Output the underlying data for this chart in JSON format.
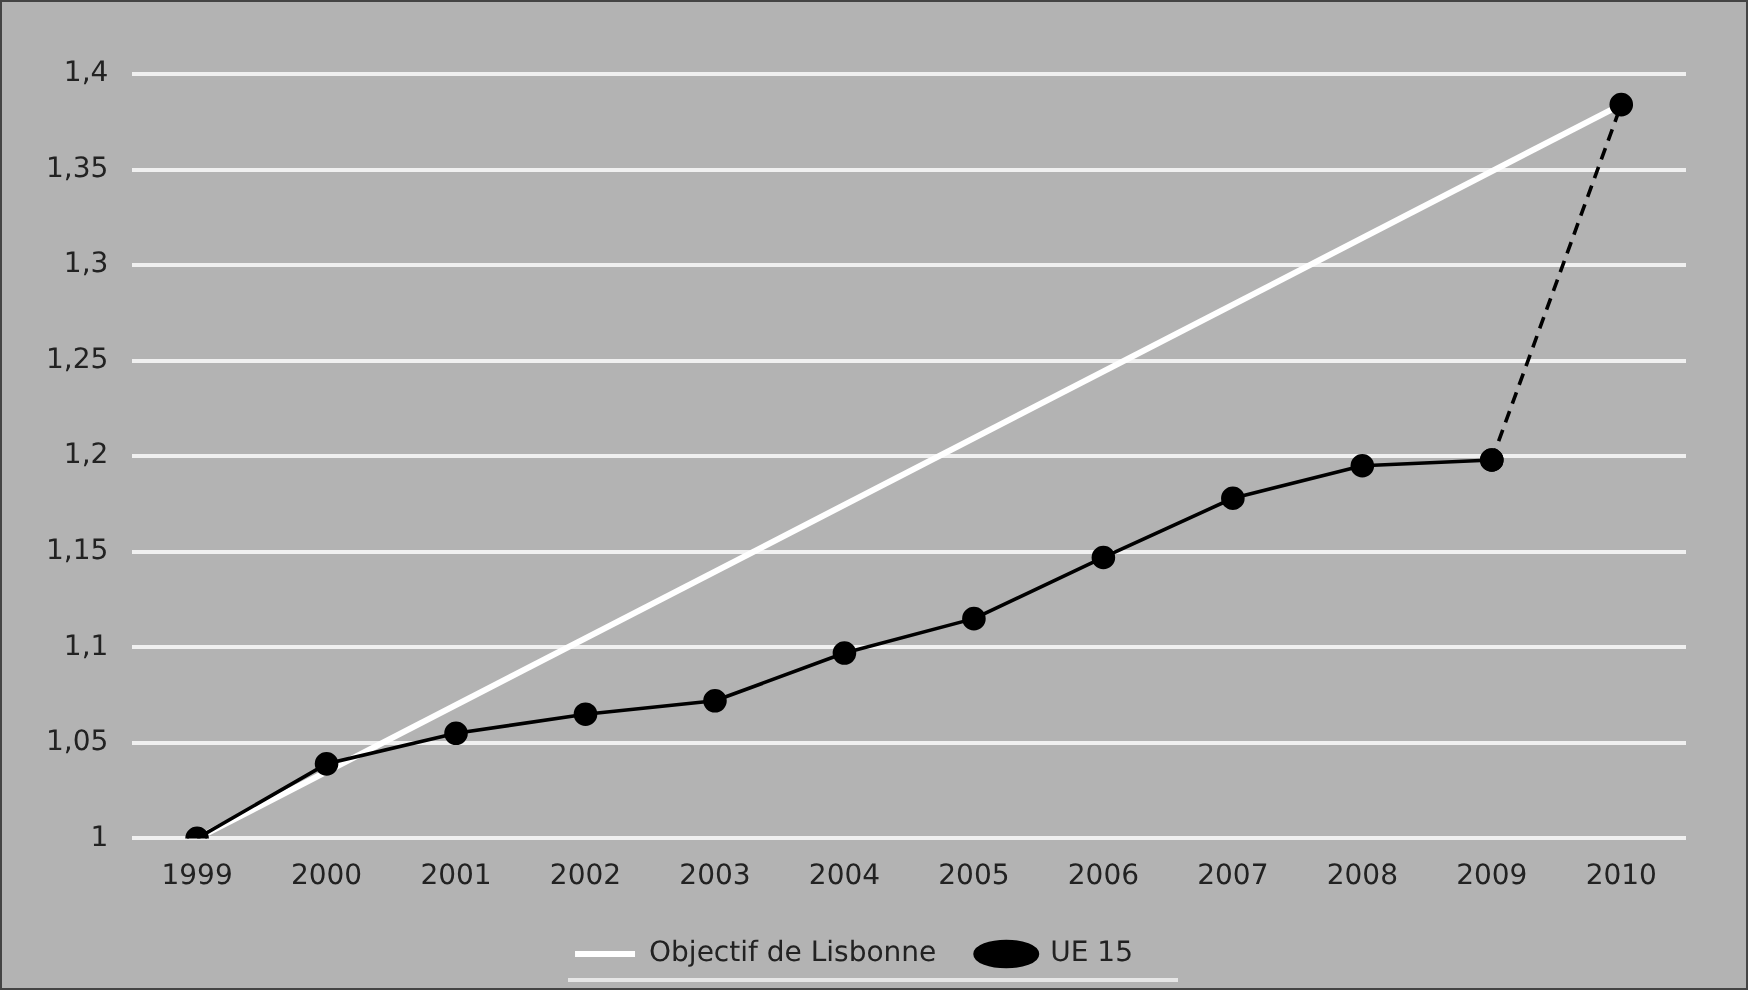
{
  "chart_data": {
    "type": "line",
    "categories": [
      "1999",
      "2000",
      "2001",
      "2002",
      "2003",
      "2004",
      "2005",
      "2006",
      "2007",
      "2008",
      "2009",
      "2010"
    ],
    "series": [
      {
        "name": "Objectif de Lisbonne",
        "color": "#ffffff",
        "marker": "none",
        "line_style": "solid",
        "values": [
          1.0,
          null,
          null,
          null,
          null,
          null,
          null,
          null,
          null,
          null,
          null,
          1.384
        ]
      },
      {
        "name": "UE 15",
        "color": "#000000",
        "marker": "circle",
        "line_style": "solid",
        "values": [
          1.0,
          1.039,
          1.055,
          1.065,
          1.072,
          1.097,
          1.115,
          1.147,
          1.178,
          1.195,
          1.198,
          null
        ]
      },
      {
        "color": "#000000",
        "marker": "circle",
        "line_style": "dashed",
        "values": [
          null,
          null,
          null,
          null,
          null,
          null,
          null,
          null,
          null,
          null,
          1.198,
          1.384
        ]
      }
    ],
    "ylim": [
      1,
      1.4
    ],
    "yticks": [
      {
        "value": 1,
        "label": "1"
      },
      {
        "value": 1.05,
        "label": "1,05"
      },
      {
        "value": 1.1,
        "label": "1,1"
      },
      {
        "value": 1.15,
        "label": "1,15"
      },
      {
        "value": 1.2,
        "label": "1,2"
      },
      {
        "value": 1.25,
        "label": "1,25"
      },
      {
        "value": 1.3,
        "label": "1,3"
      },
      {
        "value": 1.35,
        "label": "1,35"
      },
      {
        "value": 1.4,
        "label": "1,4"
      }
    ],
    "grid": "y",
    "legend": "bottom"
  }
}
